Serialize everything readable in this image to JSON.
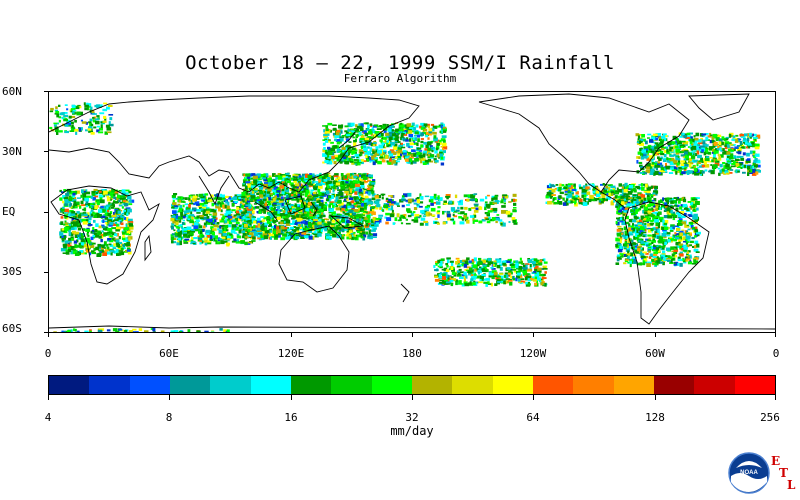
{
  "title": "October 18 – 22, 1999 SSM/I Rainfall",
  "subtitle": "Ferraro Algorithm",
  "lat_labels": [
    "60N",
    "30N",
    "EQ",
    "30S",
    "60S"
  ],
  "lon_labels": [
    "0",
    "60E",
    "120E",
    "180",
    "120W",
    "60W",
    "0"
  ],
  "colorbar_labels": [
    "4",
    "8",
    "16",
    "32",
    "64",
    "128",
    "256"
  ],
  "units": "mm/day",
  "colorbar_colors": [
    "#001a80",
    "#0033cc",
    "#0050ff",
    "#009999",
    "#00cccc",
    "#00ffff",
    "#009900",
    "#00cc00",
    "#00ff00",
    "#b3b300",
    "#dddd00",
    "#ffff00",
    "#ff5500",
    "#ff7f00",
    "#ffa500",
    "#990000",
    "#cc0000",
    "#ff0000"
  ],
  "logo_text": "NOAA",
  "lab_letters": [
    "E",
    "T",
    "L"
  ],
  "chart_data": {
    "type": "heatmap",
    "title": "October 18 – 22, 1999 SSM/I Rainfall",
    "subtitle": "Ferraro Algorithm",
    "x_ticks": [
      "0",
      "60E",
      "120E",
      "180",
      "120W",
      "60W",
      "0"
    ],
    "y_ticks": [
      "60N",
      "30N",
      "EQ",
      "30S",
      "60S"
    ],
    "colorbar_ticks": [
      4,
      8,
      16,
      32,
      64,
      128,
      256
    ],
    "colorbar_units": "mm/day",
    "lon_range": [
      0,
      360
    ],
    "lat_range": [
      -60,
      60
    ],
    "rain_regions": [
      {
        "lon_min": 5,
        "lon_max": 40,
        "lat_min": -20,
        "lat_max": 12,
        "intensity": 2
      },
      {
        "lon_min": 60,
        "lon_max": 100,
        "lat_min": -15,
        "lat_max": 10,
        "intensity": 2
      },
      {
        "lon_min": 95,
        "lon_max": 160,
        "lat_min": -12,
        "lat_max": 20,
        "intensity": 3
      },
      {
        "lon_min": 135,
        "lon_max": 195,
        "lat_min": 25,
        "lat_max": 45,
        "intensity": 2
      },
      {
        "lon_min": 160,
        "lon_max": 230,
        "lat_min": -5,
        "lat_max": 10,
        "intensity": 1
      },
      {
        "lon_min": 190,
        "lon_max": 245,
        "lat_min": -35,
        "lat_max": -22,
        "intensity": 2
      },
      {
        "lon_min": 245,
        "lon_max": 300,
        "lat_min": 5,
        "lat_max": 15,
        "intensity": 2
      },
      {
        "lon_min": 280,
        "lon_max": 320,
        "lat_min": -25,
        "lat_max": 8,
        "intensity": 2
      },
      {
        "lon_min": 290,
        "lon_max": 350,
        "lat_min": 20,
        "lat_max": 40,
        "intensity": 2
      },
      {
        "lon_min": 0,
        "lon_max": 30,
        "lat_min": 40,
        "lat_max": 55,
        "intensity": 1
      },
      {
        "lon_min": 0,
        "lon_max": 90,
        "lat_min": -60,
        "lat_max": -57,
        "intensity": 1
      }
    ]
  }
}
